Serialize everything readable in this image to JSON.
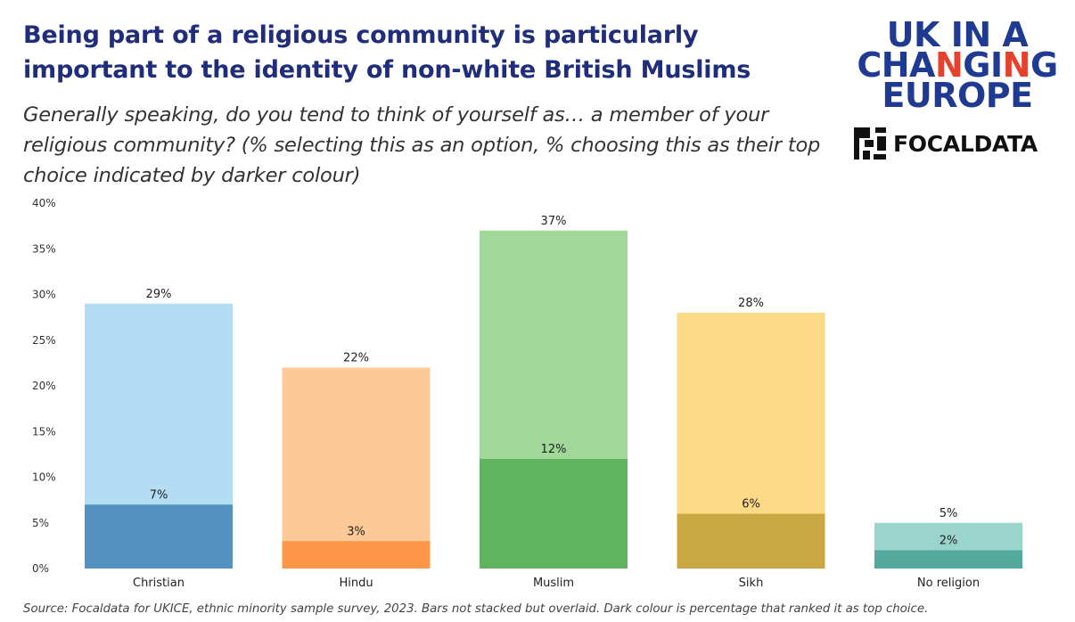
{
  "header": {
    "title": "Being part of a religious community is particularly important to the identity of non-white British Muslims",
    "subtitle": "Generally speaking, do you tend to think of yourself as… a member of your religious community? (% selecting this as an option, % choosing this as their top choice indicated by darker colour)"
  },
  "logos": {
    "ukice_line1": "UK IN A",
    "ukice_line2_a": "CHA",
    "ukice_line2_b": "N",
    "ukice_line2_c": "GI",
    "ukice_line2_d": "N",
    "ukice_line2_e": "G",
    "ukice_line3": "EUROPE",
    "focaldata": "FOCALDATA"
  },
  "chart_data": {
    "type": "bar",
    "categories": [
      "Christian",
      "Hindu",
      "Muslim",
      "Sikh",
      "No religion"
    ],
    "series": [
      {
        "name": "",
        "values": [
          29,
          22,
          37,
          28,
          5
        ],
        "labels": [
          "29%",
          "22%",
          "37%",
          "28%",
          "5%"
        ]
      },
      {
        "name": "",
        "values": [
          7,
          3,
          12,
          6,
          2
        ],
        "labels": [
          "7%",
          "3%",
          "12%",
          "6%",
          "2%"
        ]
      }
    ],
    "light_colors": [
      "#b3ddf2",
      "#fdc997",
      "#a0d99a",
      "#fbd987",
      "#9ad5cb"
    ],
    "dark_colors": [
      "#5591bf",
      "#fd9747",
      "#60b35f",
      "#c9a843",
      "#52a99c"
    ],
    "ylim": [
      0,
      40
    ],
    "yticks": [
      "0%",
      "5%",
      "10%",
      "15%",
      "20%",
      "25%",
      "30%",
      "35%",
      "40%"
    ],
    "xlabel": "",
    "ylabel": "",
    "grid": false,
    "overlaid": true
  },
  "footer": {
    "source": "Source: Focaldata for UKICE, ethnic minority sample survey, 2023. Bars not stacked but overlaid. Dark colour is percentage that ranked it as top choice."
  }
}
